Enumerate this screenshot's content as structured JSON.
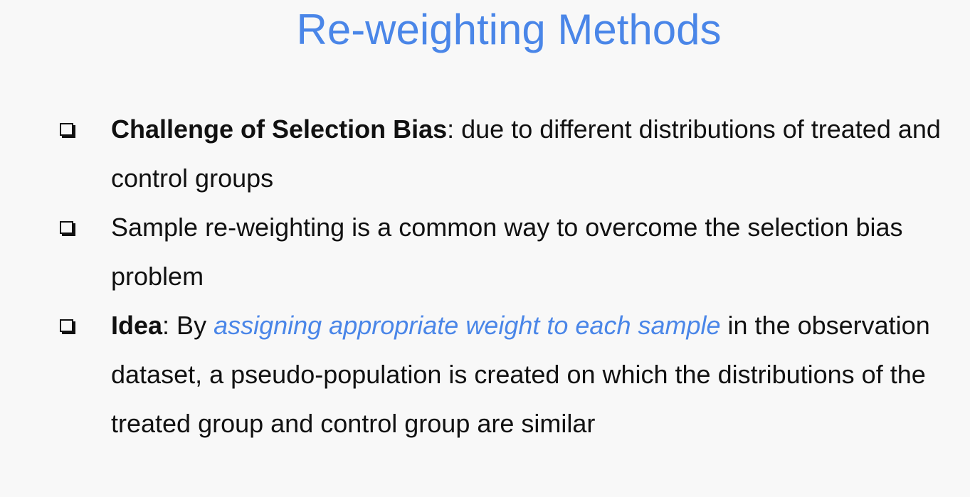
{
  "slide": {
    "title": "Re-weighting Methods",
    "accent_color": "#4a86e8",
    "bullet_icon": "checkbox-square-icon",
    "bullets": [
      {
        "term": "Challenge of Selection Bias",
        "text": ": due to different distributions of treated and control groups"
      },
      {
        "text": "Sample re-weighting is a common way to overcome the selection bias problem"
      },
      {
        "term": "Idea",
        "intro": ": By ",
        "highlight": "assigning appropriate weight to each sample",
        "text": " in the observation dataset, a pseudo-population is created on which the distributions of the treated group and control group are similar"
      }
    ]
  }
}
